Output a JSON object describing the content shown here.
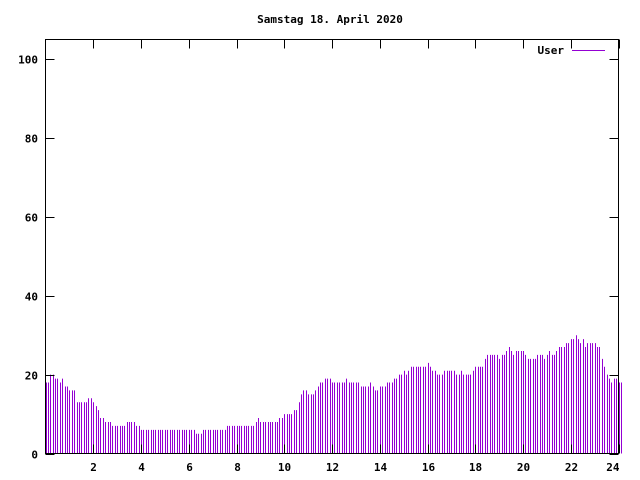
{
  "chart_data": {
    "type": "bar",
    "title": "Samstag 18. April 2020",
    "xlabel": "",
    "ylabel": "",
    "xlim": [
      0,
      24
    ],
    "ylim": [
      0,
      105
    ],
    "x_ticks": [
      2,
      4,
      6,
      8,
      10,
      12,
      14,
      16,
      18,
      20,
      22,
      24
    ],
    "y_ticks": [
      0,
      20,
      40,
      60,
      80,
      100
    ],
    "grid": false,
    "legend_position": "top-right",
    "series": [
      {
        "name": "User",
        "color": "#9400d3",
        "interval_hours": 0.1,
        "values": [
          18,
          18,
          20,
          20,
          19,
          19,
          18,
          19,
          17,
          17,
          16,
          16,
          16,
          13,
          13,
          13,
          13,
          13,
          14,
          14,
          13,
          12,
          11,
          9,
          9,
          8,
          8,
          8,
          7,
          7,
          7,
          7,
          7,
          7,
          8,
          8,
          8,
          8,
          7,
          7,
          6,
          6,
          6,
          6,
          6,
          6,
          6,
          6,
          6,
          6,
          6,
          6,
          6,
          6,
          6,
          6,
          6,
          6,
          6,
          6,
          6,
          6,
          6,
          5,
          5,
          5,
          6,
          6,
          6,
          6,
          6,
          6,
          6,
          6,
          6,
          6,
          7,
          7,
          7,
          7,
          7,
          7,
          7,
          7,
          7,
          7,
          7,
          7,
          8,
          9,
          8,
          8,
          8,
          8,
          8,
          8,
          8,
          8,
          9,
          9,
          10,
          10,
          10,
          10,
          11,
          11,
          13,
          15,
          16,
          16,
          15,
          15,
          15,
          16,
          17,
          18,
          18,
          19,
          19,
          19,
          18,
          18,
          18,
          18,
          18,
          18,
          19,
          18,
          18,
          18,
          18,
          18,
          17,
          17,
          17,
          17,
          18,
          17,
          16,
          16,
          17,
          17,
          17,
          18,
          18,
          18,
          19,
          19,
          20,
          20,
          21,
          20,
          21,
          22,
          22,
          22,
          22,
          22,
          22,
          22,
          23,
          22,
          21,
          21,
          20,
          20,
          20,
          21,
          21,
          21,
          21,
          21,
          20,
          20,
          21,
          20,
          20,
          20,
          20,
          21,
          22,
          22,
          22,
          22,
          24,
          25,
          25,
          25,
          25,
          25,
          24,
          25,
          25,
          26,
          27,
          26,
          25,
          26,
          26,
          26,
          26,
          25,
          24,
          24,
          24,
          24,
          25,
          25,
          25,
          24,
          25,
          26,
          25,
          25,
          26,
          27,
          27,
          27,
          28,
          28,
          29,
          29,
          30,
          29,
          28,
          29,
          27,
          28,
          28,
          28,
          28,
          27,
          27,
          24,
          22,
          20,
          19,
          18,
          19,
          19,
          18,
          18
        ]
      }
    ]
  }
}
